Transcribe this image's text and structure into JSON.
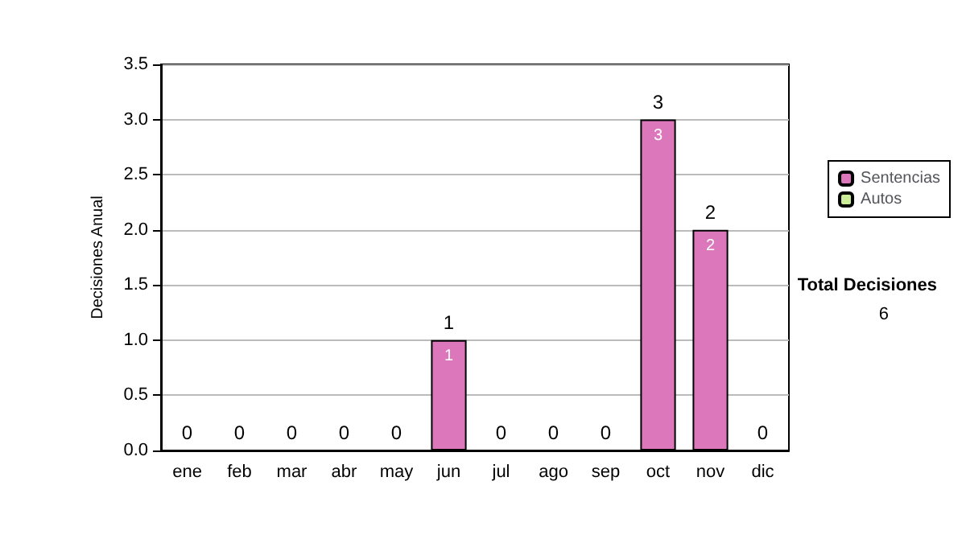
{
  "chart_data": {
    "type": "bar",
    "stacked": true,
    "ylabel": "Decisiones Anual",
    "categories": [
      "ene",
      "feb",
      "mar",
      "abr",
      "may",
      "jun",
      "jul",
      "ago",
      "sep",
      "oct",
      "nov",
      "dic"
    ],
    "series": [
      {
        "name": "Sentencias",
        "color": "#dd77bb",
        "values": [
          0,
          0,
          0,
          0,
          0,
          1,
          0,
          0,
          0,
          3,
          2,
          0
        ],
        "value_labels": [
          null,
          null,
          null,
          null,
          null,
          "1",
          null,
          null,
          null,
          "3",
          "2",
          null
        ]
      },
      {
        "name": "Autos",
        "color": "#ccee99",
        "values": [
          0,
          0,
          0,
          0,
          0,
          0,
          0,
          0,
          0,
          0,
          0,
          0
        ]
      }
    ],
    "totals": [
      "0",
      "0",
      "0",
      "0",
      "0",
      "1",
      "0",
      "0",
      "0",
      "3",
      "2",
      "0"
    ],
    "ylim": [
      0,
      3.5
    ],
    "yticks": [
      {
        "value": 0,
        "label": "0.0"
      },
      {
        "value": 0.5,
        "label": "0.5"
      },
      {
        "value": 1,
        "label": "1.0"
      },
      {
        "value": 1.5,
        "label": "1.5"
      },
      {
        "value": 2,
        "label": "2.0"
      },
      {
        "value": 2.5,
        "label": "2.5"
      },
      {
        "value": 3,
        "label": "3.0"
      },
      {
        "value": 3.5,
        "label": "3.5"
      }
    ],
    "grid": "y",
    "legend": "right",
    "annotations": [
      "Total Decisiones",
      "6"
    ]
  }
}
